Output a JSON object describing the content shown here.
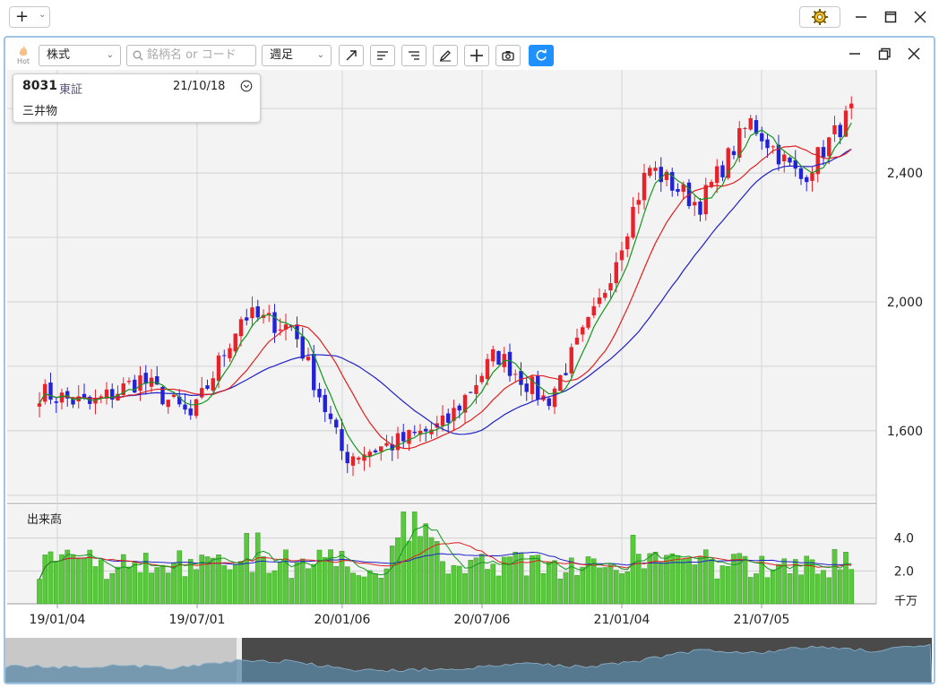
{
  "toolbar": {
    "hot_label": "Hot",
    "type_select": "株式",
    "search_placeholder": "銘柄名 or コード",
    "period_select": "週足"
  },
  "info": {
    "code": "8031",
    "market": "東証",
    "date": "21/10/18",
    "name": "三井物"
  },
  "volume_title": "出来高",
  "volume_unit": "千万",
  "icons": {
    "add": "plus-icon",
    "settings": "gear-icon",
    "trend": "trendline-icon",
    "align_left": "align-left-icon",
    "align_right": "align-right-icon",
    "pen": "pen-icon",
    "crosshair": "crosshair-icon",
    "camera": "camera-icon",
    "refresh": "refresh-icon"
  },
  "colors": {
    "up": "#e8222a",
    "down": "#2222d8",
    "ma_short": "#14961e",
    "ma_mid": "#e02020",
    "ma_long": "#2020c8",
    "volume": "#5ac83c",
    "accent": "#1e90ff"
  },
  "chart_data": [
    {
      "type": "candlestick",
      "title": "",
      "yticks": [
        1600,
        2000,
        2400
      ],
      "ylim": [
        1380,
        2720
      ],
      "xticks": [
        "19/01/04",
        "19/07/01",
        "20/01/06",
        "20/07/06",
        "21/01/04",
        "21/07/05"
      ],
      "x_range": [
        "19/01/04",
        "21/10/18"
      ],
      "ohlc_anchors": [
        {
          "date": "19/01/04",
          "close": 1720
        },
        {
          "date": "19/03",
          "close": 1680
        },
        {
          "date": "19/07/01",
          "close": 1760
        },
        {
          "date": "19/10",
          "close": 1640
        },
        {
          "date": "20/01/06",
          "close": 1960
        },
        {
          "date": "20/02",
          "close": 1920
        },
        {
          "date": "20/03",
          "close": 1520
        },
        {
          "date": "20/05",
          "close": 1560
        },
        {
          "date": "20/07/06",
          "close": 1620
        },
        {
          "date": "20/09",
          "close": 1840
        },
        {
          "date": "20/11",
          "close": 1690
        },
        {
          "date": "21/01/04",
          "close": 1980
        },
        {
          "date": "21/03",
          "close": 2420
        },
        {
          "date": "21/05",
          "close": 2300
        },
        {
          "date": "21/07/05",
          "close": 2560
        },
        {
          "date": "21/09",
          "close": 2380
        },
        {
          "date": "21/10/18",
          "close": 2590
        }
      ],
      "series": [
        {
          "kind": "ma-short"
        },
        {
          "kind": "ma-mid"
        },
        {
          "kind": "ma-long"
        }
      ]
    },
    {
      "type": "bar",
      "title": "出来高",
      "yticks": [
        2.0,
        4.0
      ],
      "ylim": [
        0,
        6
      ],
      "ylabel": "千万"
    }
  ]
}
